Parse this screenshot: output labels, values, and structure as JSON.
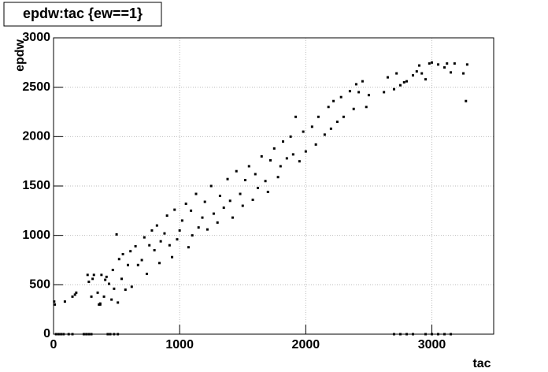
{
  "chart_data": {
    "type": "scatter",
    "title": "epdw:tac {ew==1}",
    "x_label": "tac",
    "y_label": "epdw",
    "series": [
      {
        "color": "#000000",
        "x": [
          5,
          10,
          90,
          150,
          170,
          180,
          270,
          280,
          300,
          310,
          320,
          350,
          370,
          380,
          400,
          410,
          420,
          440,
          460,
          470,
          480,
          500,
          510,
          520,
          540,
          550,
          570,
          590,
          610,
          620,
          650,
          670,
          700,
          720,
          740,
          760,
          780,
          800,
          820,
          840,
          850,
          880,
          900,
          920,
          940,
          960,
          980,
          1000,
          1020,
          1050,
          1070,
          1090,
          1100,
          1130,
          1150,
          1180,
          1200,
          1220,
          1250,
          1270,
          1300,
          1320,
          1350,
          1380,
          1400,
          1420,
          1450,
          1480,
          1500,
          1520,
          1550,
          1580,
          1600,
          1620,
          1650,
          1680,
          1700,
          1720,
          1750,
          1780,
          1800,
          1820,
          1850,
          1880,
          1900,
          1920,
          1950,
          1980,
          2000,
          2050,
          2080,
          2100,
          2150,
          2180,
          2200,
          2220,
          2250,
          2280,
          2300,
          2350,
          2380,
          2400,
          2420,
          2450,
          2480,
          2500,
          2620,
          2650,
          2700,
          2720,
          2750,
          2780,
          2800,
          2850,
          2880,
          2900,
          2920,
          2950,
          2980,
          3000,
          3050,
          3100,
          3120,
          3150,
          3180,
          3250,
          3270,
          3280,
          20,
          40,
          60,
          80,
          120,
          150,
          240,
          260,
          280,
          300,
          430,
          450,
          480,
          510,
          2700,
          2750,
          2800,
          2850,
          2950,
          3000,
          3050,
          3100,
          3150,
          360,
          370
        ],
        "values": [
          330,
          300,
          330,
          380,
          400,
          420,
          600,
          530,
          380,
          560,
          600,
          420,
          310,
          600,
          380,
          550,
          580,
          510,
          350,
          650,
          460,
          1010,
          320,
          760,
          560,
          810,
          450,
          700,
          840,
          480,
          890,
          700,
          750,
          980,
          610,
          900,
          1050,
          850,
          1100,
          720,
          940,
          1020,
          1200,
          900,
          780,
          1260,
          960,
          1050,
          1150,
          1320,
          880,
          1250,
          1000,
          1420,
          1080,
          1180,
          1340,
          1060,
          1500,
          1220,
          1130,
          1400,
          1280,
          1570,
          1350,
          1180,
          1650,
          1420,
          1300,
          1560,
          1700,
          1360,
          1620,
          1480,
          1800,
          1550,
          1440,
          1760,
          1880,
          1590,
          1700,
          1950,
          1780,
          2000,
          1820,
          2200,
          1750,
          2050,
          1850,
          2100,
          1920,
          2200,
          2020,
          2300,
          2080,
          2360,
          2150,
          2400,
          2200,
          2460,
          2280,
          2530,
          2450,
          2560,
          2300,
          2420,
          2450,
          2600,
          2480,
          2640,
          2520,
          2550,
          2560,
          2620,
          2660,
          2720,
          2640,
          2580,
          2740,
          2750,
          2730,
          2700,
          2740,
          2650,
          2740,
          2640,
          2360,
          2730,
          0,
          0,
          0,
          0,
          0,
          0,
          0,
          0,
          0,
          0,
          0,
          0,
          0,
          0,
          0,
          0,
          0,
          0,
          0,
          0,
          0,
          0,
          0,
          300,
          300
        ]
      }
    ],
    "xlim": [
      0,
      3490
    ],
    "ylim": [
      0,
      3000
    ],
    "xticks": [
      0,
      1000,
      2000,
      3000
    ],
    "yticks": [
      0,
      500,
      1000,
      1500,
      2000,
      2500,
      3000
    ],
    "grid": true
  }
}
